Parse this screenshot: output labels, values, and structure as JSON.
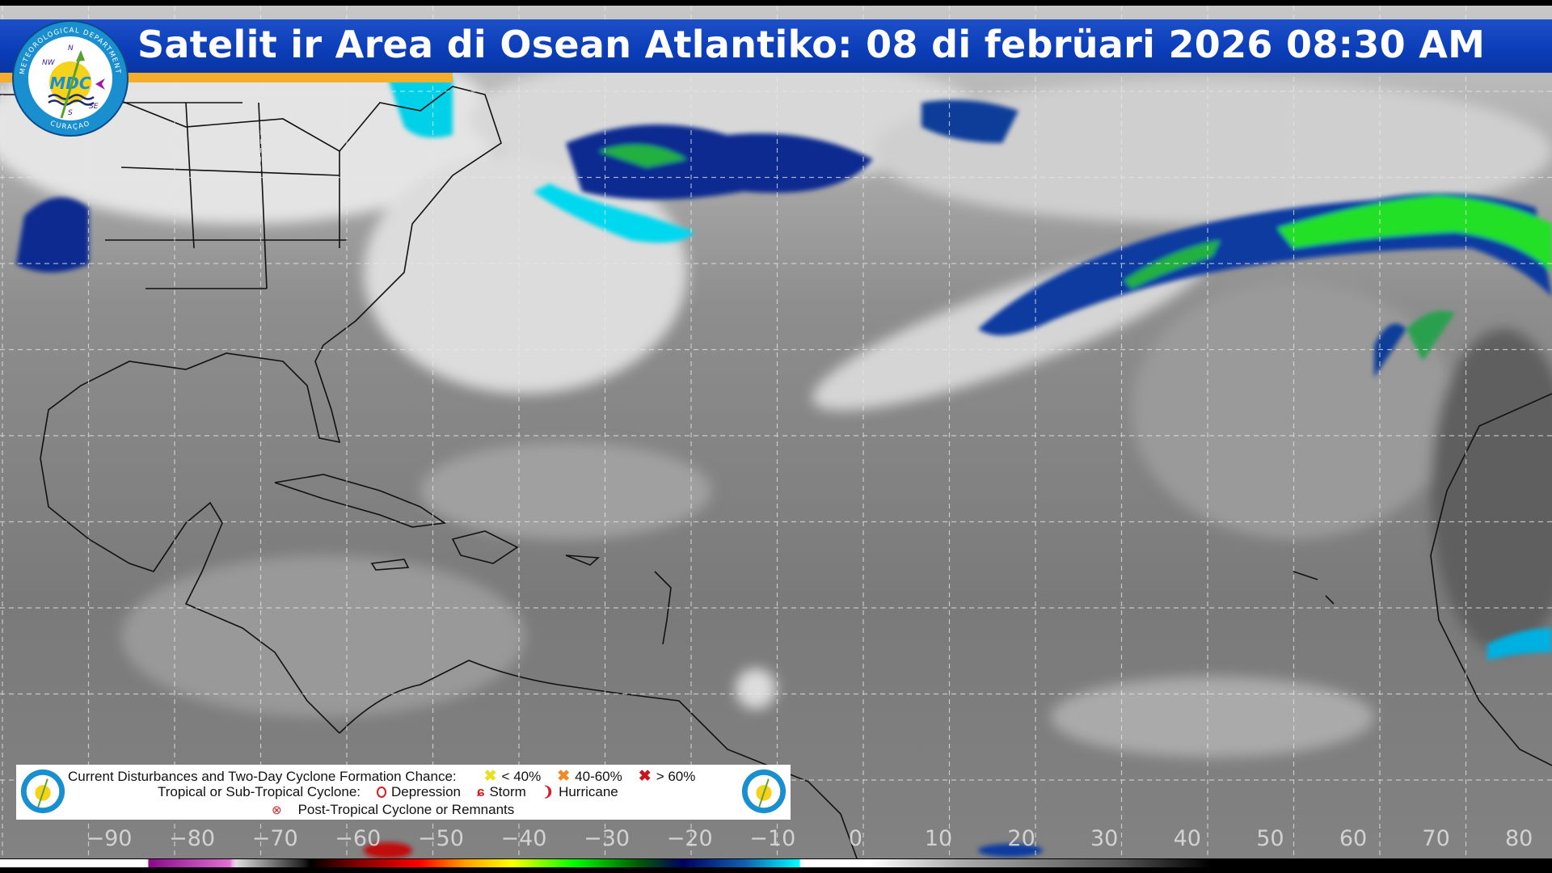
{
  "header": {
    "title": "Satelit ir Area di Osean Atlantiko: 08 di febrüari 2026 08:30 AM"
  },
  "logo": {
    "ring_top": "METEOROLOGICAL DEPARTMENT",
    "ring_bottom": "CURAÇAO",
    "center": "MDC",
    "compass": [
      "N",
      "NW",
      "SE",
      "S"
    ]
  },
  "legend": {
    "line1": "Current Disturbances and Two-Day Cyclone Formation Chance:",
    "chance_low": "< 40%",
    "chance_mid": "40-60%",
    "chance_high": "> 60%",
    "line2": "Tropical or Sub-Tropical Cyclone:",
    "depression": "Depression",
    "storm": "Storm",
    "hurricane": "Hurricane",
    "post_tropical": "Post-Tropical Cyclone or Remnants",
    "colors": {
      "low": "#f2f22a",
      "mid": "#f08a24",
      "high": "#c8161e",
      "cyclone": "#d0202a"
    }
  },
  "longitude_labels": [
    "−90",
    "−80",
    "−70",
    "−60",
    "−50",
    "−40",
    "−30",
    "−20",
    "−10",
    "0",
    "10",
    "20",
    "30",
    "40",
    "50",
    "60",
    "70",
    "80"
  ],
  "colors": {
    "banner": "#0b3db8",
    "banner_accent": "#f5ad2a"
  }
}
